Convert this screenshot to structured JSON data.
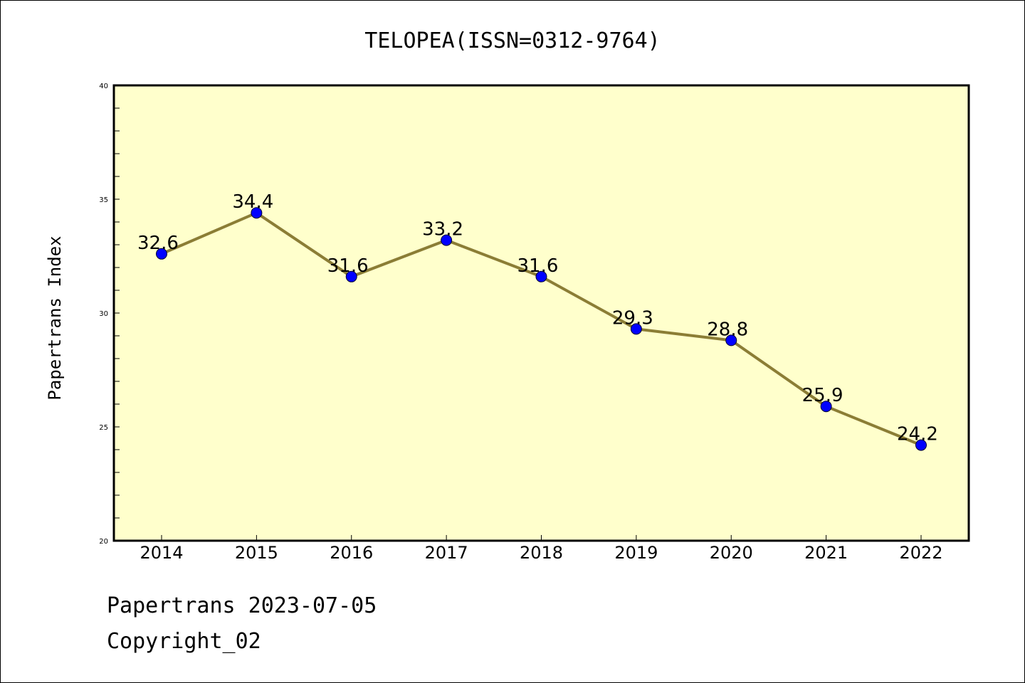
{
  "chart_data": {
    "type": "line",
    "title": "TELOPEA(ISSN=0312-9764)",
    "xlabel": "",
    "ylabel": "Papertrans Index",
    "categories": [
      "2014",
      "2015",
      "2016",
      "2017",
      "2018",
      "2019",
      "2020",
      "2021",
      "2022"
    ],
    "series": [
      {
        "values": [
          32.6,
          34.4,
          31.6,
          33.2,
          31.6,
          29.3,
          28.8,
          25.9,
          24.2
        ]
      }
    ],
    "data_labels": [
      "32.6",
      "34.4",
      "31.6",
      "33.2",
      "31.6",
      "29.3",
      "28.8",
      "25.9",
      "24.2"
    ],
    "ylim": [
      20,
      40
    ],
    "yticks": [
      "20",
      "25",
      "30",
      "35",
      "40"
    ],
    "grid": false,
    "colors": {
      "plot_background": "#ffffcc",
      "line": "#8b7d35",
      "marker": "#0000ff"
    }
  },
  "footer": {
    "line1": "Papertrans 2023-07-05",
    "line2": "Copyright_02"
  }
}
